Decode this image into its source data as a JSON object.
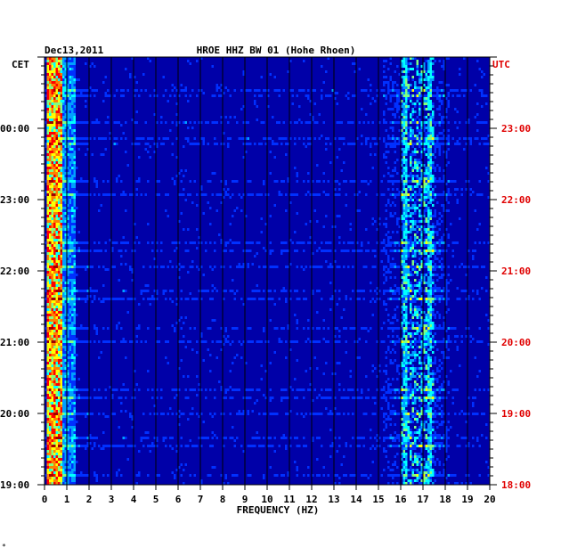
{
  "header": {
    "date": "Dec13,2011",
    "station": "HROE HHZ BW 01 (Hohe Rhoen)",
    "left_zone": "CET",
    "right_zone": "UTC"
  },
  "colors": {
    "background_field": "#0000a8",
    "utc_labels": "#e00000",
    "tick": "#000000"
  },
  "chart_data": {
    "type": "heatmap",
    "title": "HROE HHZ BW 01 (Hohe Rhoen)",
    "xlabel": "FREQUENCY (HZ)",
    "ylabel": "",
    "x_range": [
      0,
      20
    ],
    "x_ticks": [
      "0",
      "1",
      "2",
      "3",
      "4",
      "5",
      "6",
      "7",
      "8",
      "9",
      "10",
      "11",
      "12",
      "13",
      "14",
      "15",
      "16",
      "17",
      "18",
      "19",
      "20"
    ],
    "y_ticks_left_cet": [
      "00:00",
      "23:00",
      "22:00",
      "21:00",
      "20:00",
      "19:00"
    ],
    "y_ticks_right_utc": [
      "23:00",
      "22:00",
      "21:00",
      "20:00",
      "19:00",
      "18:00"
    ],
    "grid": true,
    "colormap": [
      "#0000a8",
      "#0030ff",
      "#00a0ff",
      "#00ffff",
      "#80ff80",
      "#ffff00",
      "#ff8000",
      "#ff0000",
      "#a00000"
    ],
    "high_energy_bands_hz": [
      [
        0.1,
        0.8
      ],
      [
        16.0,
        17.5
      ]
    ]
  },
  "footer_mark": "*"
}
